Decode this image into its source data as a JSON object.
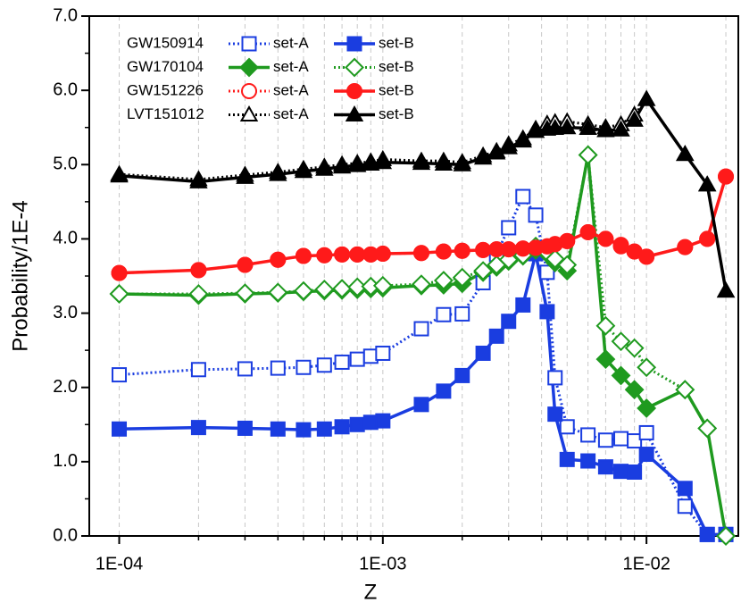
{
  "chart_data": {
    "type": "line",
    "xlabel": "Z",
    "ylabel": "Probability/1E-4",
    "log_x": true,
    "grid_x_minor": true,
    "xlim": [
      7.7e-05,
      0.0223
    ],
    "ylim": [
      0,
      7
    ],
    "xticks": [
      {
        "value": 0.0001,
        "label": "1E-04"
      },
      {
        "value": 0.001,
        "label": "1E-03"
      },
      {
        "value": 0.01,
        "label": "1E-02"
      }
    ],
    "xminorticks": [
      0.0002,
      0.0003,
      0.0004,
      0.0005,
      0.0006,
      0.0007,
      0.0008,
      0.0009,
      0.002,
      0.003,
      0.004,
      0.005,
      0.006,
      0.007,
      0.008,
      0.009,
      0.02
    ],
    "yticks": [
      {
        "value": 0,
        "label": "0.0"
      },
      {
        "value": 1,
        "label": "1.0"
      },
      {
        "value": 2,
        "label": "2.0"
      },
      {
        "value": 3,
        "label": "3.0"
      },
      {
        "value": 4,
        "label": "4.0"
      },
      {
        "value": 5,
        "label": "5.0"
      },
      {
        "value": 6,
        "label": "6.0"
      },
      {
        "value": 7,
        "label": "7.0"
      }
    ],
    "yminorticks": [
      0.5,
      1.5,
      2.5,
      3.5,
      4.5,
      5.5,
      6.5
    ],
    "groups": [
      "GW150914",
      "GW170104",
      "GW151226",
      "LVT151012"
    ],
    "x": [
      0.0001,
      0.0002,
      0.0003,
      0.0004,
      0.0005,
      0.0006,
      0.0007,
      0.0008,
      0.0009,
      0.001,
      0.0014,
      0.0017,
      0.002,
      0.0024,
      0.0027,
      0.003,
      0.0034,
      0.0038,
      0.0042,
      0.0045,
      0.005,
      0.006,
      0.007,
      0.008,
      0.009,
      0.01,
      0.014,
      0.017,
      0.02
    ],
    "series": [
      {
        "name": "set-A",
        "color": "#1a3de0",
        "marker": "square",
        "filled": false,
        "dotted": true,
        "values": [
          2.17,
          2.24,
          2.25,
          2.26,
          2.27,
          2.3,
          2.34,
          2.38,
          2.42,
          2.46,
          2.79,
          2.98,
          2.99,
          3.41,
          3.79,
          4.15,
          4.57,
          4.32,
          3.55,
          2.13,
          1.47,
          1.36,
          1.29,
          1.31,
          1.28,
          1.39,
          0.4,
          0.02,
          0.02
        ]
      },
      {
        "name": "set-B",
        "color": "#1a3de0",
        "marker": "square",
        "filled": true,
        "dotted": false,
        "values": [
          1.44,
          1.46,
          1.45,
          1.44,
          1.43,
          1.44,
          1.47,
          1.5,
          1.53,
          1.55,
          1.77,
          1.95,
          2.16,
          2.46,
          2.69,
          2.89,
          3.11,
          3.8,
          3.02,
          1.64,
          1.03,
          1.01,
          0.93,
          0.87,
          0.86,
          1.1,
          0.64,
          0.02,
          0.02
        ]
      },
      {
        "name": "set-A",
        "color": "#1f9a1f",
        "marker": "diamond",
        "filled": true,
        "dotted": false,
        "values": [
          3.26,
          3.24,
          3.26,
          3.27,
          3.29,
          3.3,
          3.31,
          3.32,
          3.33,
          3.34,
          3.37,
          3.38,
          3.4,
          3.55,
          3.62,
          3.7,
          3.77,
          3.85,
          3.8,
          3.68,
          3.57,
          5.13,
          2.38,
          2.16,
          1.97,
          1.72,
          1.97,
          1.45,
          0.0
        ]
      },
      {
        "name": "set-B",
        "color": "#1f9a1f",
        "marker": "diamond",
        "filled": false,
        "dotted": true,
        "values": [
          3.26,
          3.26,
          3.27,
          3.28,
          3.3,
          3.32,
          3.33,
          3.35,
          3.36,
          3.37,
          3.39,
          3.44,
          3.48,
          3.57,
          3.65,
          3.72,
          3.78,
          3.9,
          3.82,
          3.73,
          3.65,
          5.13,
          2.83,
          2.62,
          2.53,
          2.27,
          1.97,
          1.45,
          0.0
        ]
      },
      {
        "name": "set-A",
        "color": "#ff1a1a",
        "marker": "circle",
        "filled": false,
        "dotted": true,
        "values": [
          3.54,
          3.58,
          3.65,
          3.72,
          3.77,
          3.78,
          3.79,
          3.79,
          3.79,
          3.8,
          3.81,
          3.83,
          3.84,
          3.85,
          3.86,
          3.86,
          3.87,
          3.88,
          3.9,
          3.93,
          3.97,
          4.09,
          4.0,
          3.9,
          3.83,
          3.76,
          3.89,
          4.0,
          4.84
        ]
      },
      {
        "name": "set-B",
        "color": "#ff1a1a",
        "marker": "circle",
        "filled": true,
        "dotted": false,
        "values": [
          3.54,
          3.58,
          3.65,
          3.72,
          3.77,
          3.78,
          3.79,
          3.79,
          3.79,
          3.8,
          3.81,
          3.83,
          3.84,
          3.85,
          3.86,
          3.86,
          3.87,
          3.88,
          3.9,
          3.93,
          3.97,
          4.09,
          4.0,
          3.92,
          3.83,
          3.76,
          3.89,
          4.0,
          4.84
        ]
      },
      {
        "name": "set-A",
        "color": "#000000",
        "marker": "triangle",
        "filled": false,
        "dotted": true,
        "values": [
          4.87,
          4.8,
          4.86,
          4.9,
          4.94,
          4.97,
          5.0,
          5.02,
          5.04,
          5.07,
          5.05,
          5.05,
          5.03,
          5.12,
          5.18,
          5.27,
          5.35,
          5.48,
          5.55,
          5.57,
          5.58,
          5.54,
          5.5,
          5.54,
          5.67,
          5.88,
          5.14,
          4.73,
          3.3
        ]
      },
      {
        "name": "set-B",
        "color": "#000000",
        "marker": "triangle",
        "filled": true,
        "dotted": false,
        "values": [
          4.85,
          4.77,
          4.83,
          4.87,
          4.91,
          4.94,
          4.97,
          4.99,
          5.01,
          5.03,
          5.02,
          5.01,
          5.0,
          5.09,
          5.16,
          5.23,
          5.32,
          5.45,
          5.48,
          5.49,
          5.5,
          5.49,
          5.46,
          5.47,
          5.6,
          5.88,
          5.14,
          4.73,
          3.3
        ]
      }
    ]
  }
}
